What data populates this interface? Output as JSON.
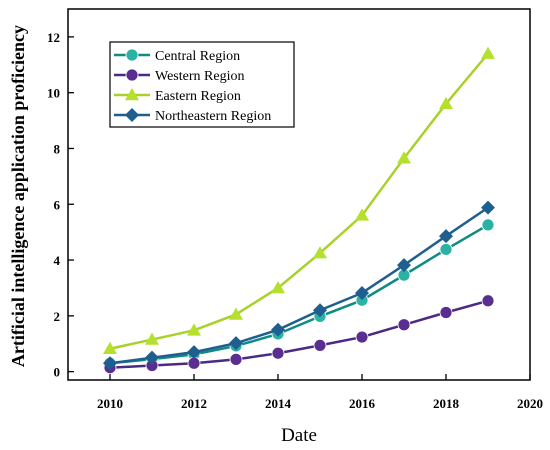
{
  "chart_data": {
    "type": "line",
    "xlabel": "Date",
    "ylabel": "Artificial intelligence application proficiency",
    "xlim": [
      2009,
      2020
    ],
    "ylim": [
      -0.3,
      13
    ],
    "x_ticks": [
      2010,
      2012,
      2014,
      2016,
      2018,
      2020
    ],
    "y_ticks": [
      0,
      2,
      4,
      6,
      8,
      10,
      12
    ],
    "legend_position": "top-left",
    "x": [
      2010,
      2011,
      2012,
      2013,
      2014,
      2015,
      2016,
      2017,
      2018,
      2019
    ],
    "series": [
      {
        "name": "Central Region",
        "marker": "circle",
        "line_color": "#0e8c84",
        "marker_color": "#2ab3a5",
        "values": [
          0.3,
          0.45,
          0.62,
          0.92,
          1.35,
          1.98,
          2.56,
          3.46,
          4.38,
          5.26
        ]
      },
      {
        "name": "Western Region",
        "marker": "circle",
        "line_color": "#4b2a86",
        "marker_color": "#5a2d91",
        "values": [
          0.14,
          0.22,
          0.3,
          0.44,
          0.66,
          0.94,
          1.24,
          1.68,
          2.12,
          2.54
        ]
      },
      {
        "name": "Eastern Region",
        "marker": "triangle",
        "line_color": "#a8d12a",
        "marker_color": "#b5e02e",
        "values": [
          0.82,
          1.15,
          1.48,
          2.05,
          3.0,
          4.25,
          5.6,
          7.65,
          9.6,
          11.4
        ]
      },
      {
        "name": "Northeastern Region",
        "marker": "diamond",
        "line_color": "#1f5f8f",
        "marker_color": "#1f5f8f",
        "values": [
          0.3,
          0.5,
          0.7,
          1.02,
          1.5,
          2.2,
          2.82,
          3.82,
          4.86,
          5.88
        ]
      }
    ]
  }
}
